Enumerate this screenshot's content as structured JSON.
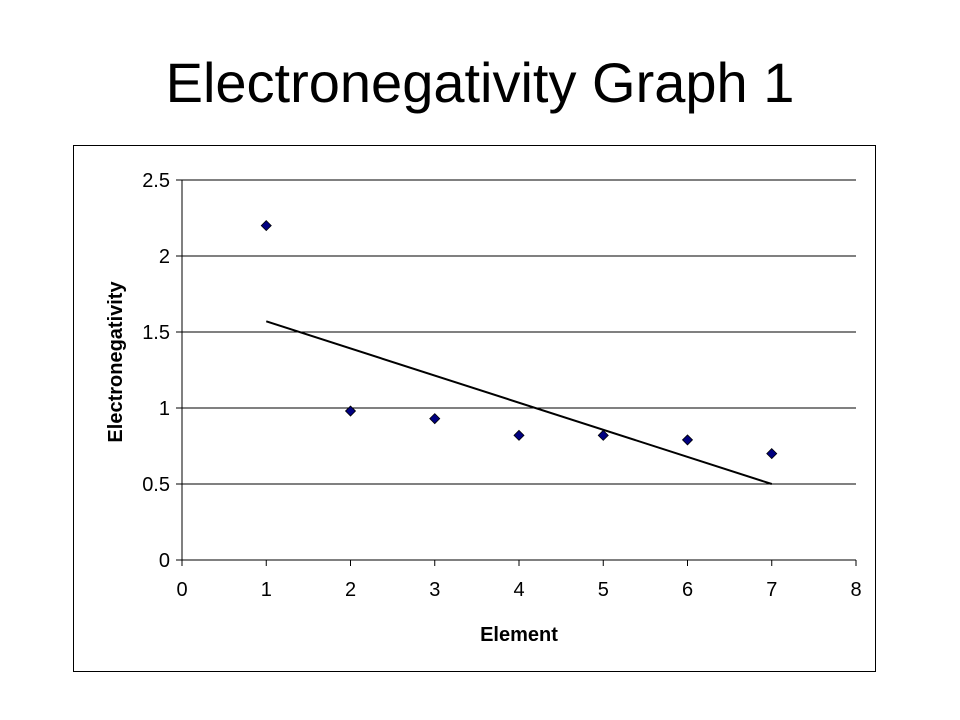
{
  "slide": {
    "title": "Electronegativity Graph 1"
  },
  "chart_data": {
    "type": "scatter",
    "title": "",
    "xlabel": "Element",
    "ylabel": "Electronegativity",
    "xlim": [
      0,
      8
    ],
    "ylim": [
      0,
      2.5
    ],
    "x_ticks": [
      "0",
      "1",
      "2",
      "3",
      "4",
      "5",
      "6",
      "7",
      "8"
    ],
    "y_ticks": [
      "0",
      "0.5",
      "1",
      "1.5",
      "2",
      "2.5"
    ],
    "grid": "horizontal",
    "legend": "none",
    "series": [
      {
        "x": [
          1,
          2,
          3,
          4,
          5,
          6,
          7
        ],
        "y": [
          2.2,
          0.98,
          0.93,
          0.82,
          0.82,
          0.79,
          0.7
        ],
        "marker": "diamond",
        "color": "#000080"
      }
    ],
    "trendline": {
      "type": "linear",
      "x": [
        1,
        7
      ],
      "y": [
        1.57,
        0.5
      ],
      "color": "#000000"
    }
  }
}
